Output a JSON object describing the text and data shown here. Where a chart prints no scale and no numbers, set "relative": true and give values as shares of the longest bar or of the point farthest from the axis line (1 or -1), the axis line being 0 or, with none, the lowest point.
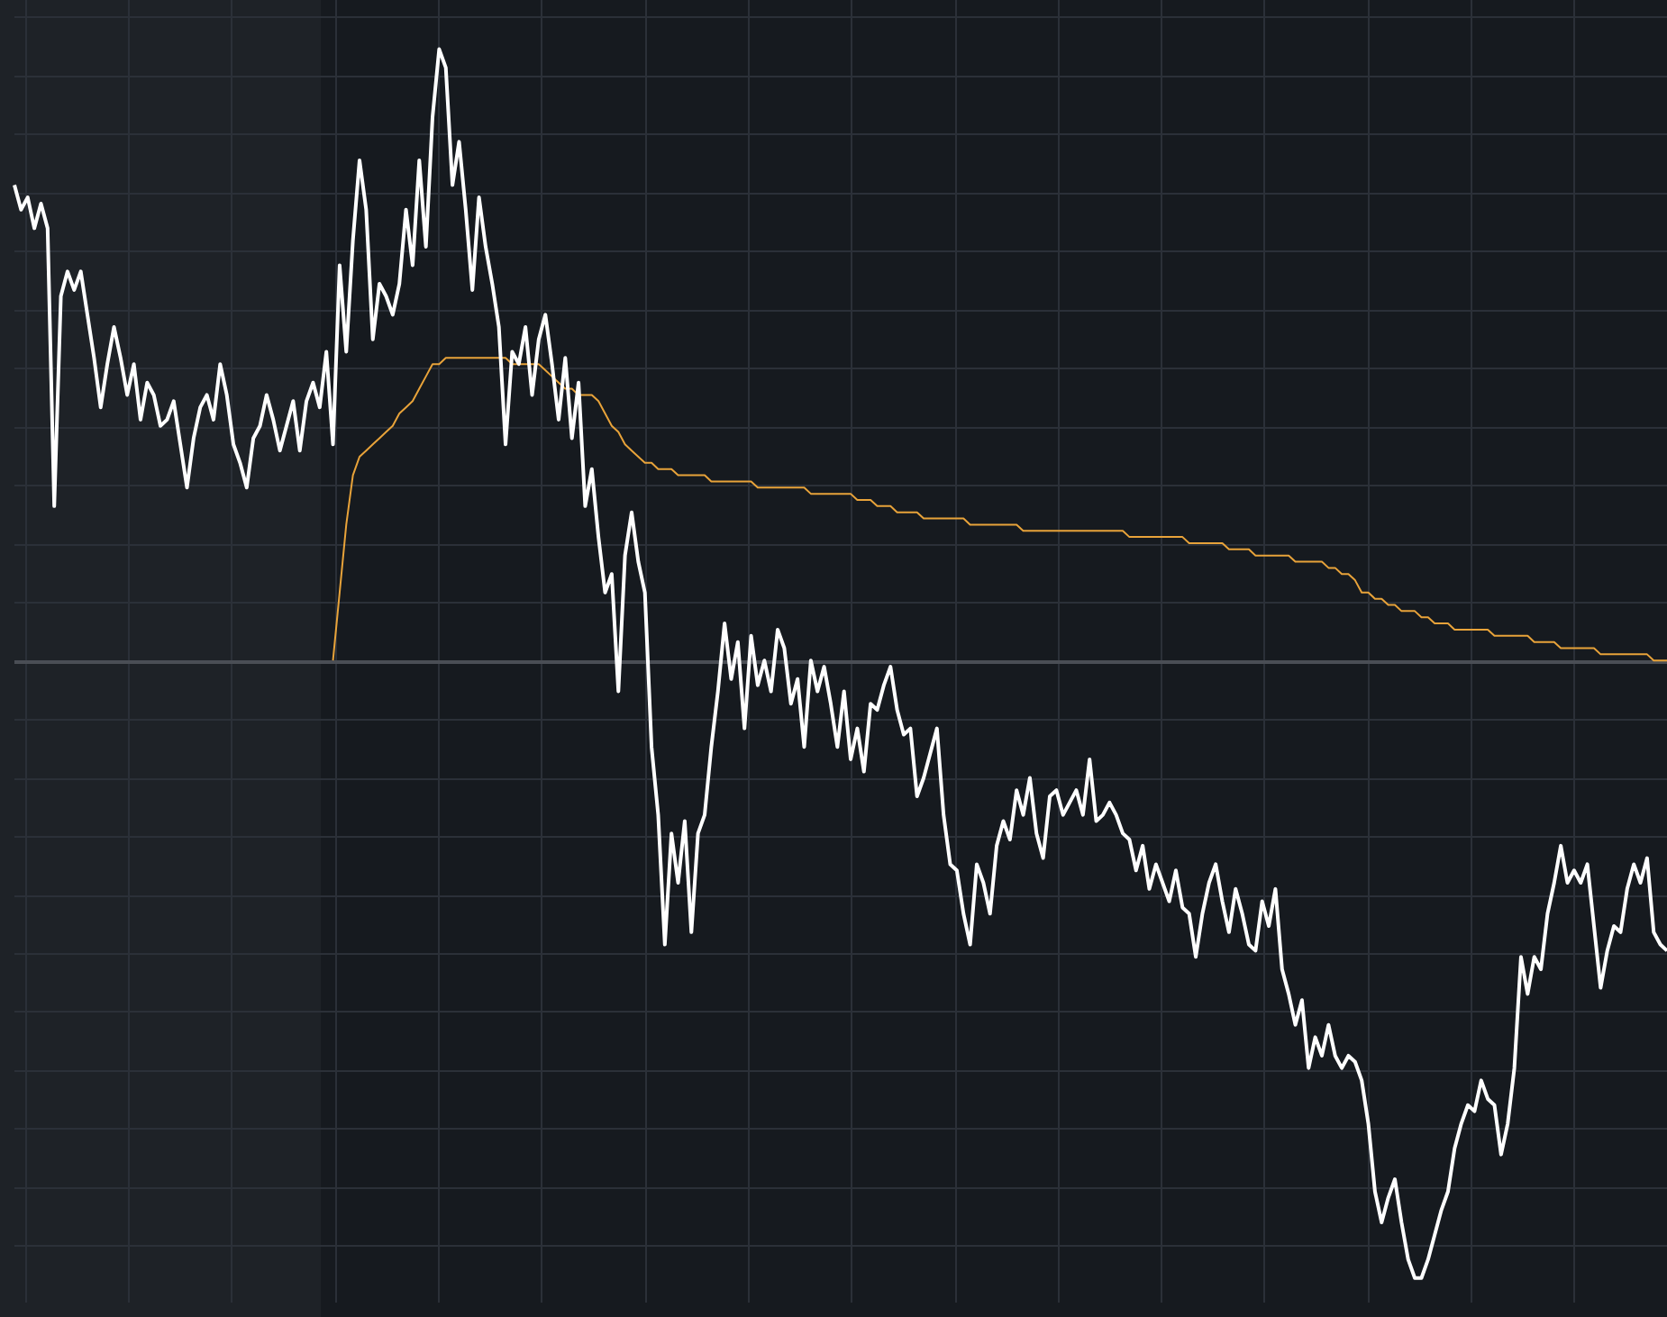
{
  "chart_data": {
    "type": "line",
    "relative": true,
    "tick_labels": false,
    "grid": true,
    "categories": [
      null,
      null,
      null,
      null,
      null,
      null,
      null,
      null,
      null,
      null,
      null,
      null,
      null,
      null,
      null,
      null,
      null,
      null,
      null,
      null,
      null,
      null,
      null,
      null,
      null,
      null,
      null,
      null,
      null,
      null,
      null,
      null,
      null,
      null,
      null,
      null,
      null,
      null,
      null,
      null,
      null,
      null,
      null,
      null,
      null,
      null,
      null,
      null,
      null,
      null,
      null,
      null,
      null,
      null,
      null,
      null,
      null,
      null,
      null,
      null,
      null,
      null,
      null,
      null,
      null,
      null,
      null,
      null,
      null,
      null,
      null,
      null,
      null,
      null,
      null,
      null,
      null,
      null,
      null,
      null,
      null,
      null,
      null,
      null,
      null,
      null,
      null,
      null,
      null,
      null,
      null,
      null,
      null,
      null,
      null,
      null,
      null,
      null,
      null,
      null,
      null,
      null,
      null,
      null,
      null,
      null,
      null,
      null,
      null,
      null,
      null,
      null,
      null,
      null,
      null,
      null,
      null,
      null,
      null,
      null,
      null,
      null,
      null,
      null,
      null,
      null,
      null,
      null,
      null,
      null,
      null,
      null,
      null,
      null,
      null,
      null,
      null,
      null,
      null,
      null,
      null,
      null,
      null,
      null,
      null,
      null,
      null,
      null,
      null,
      null,
      null,
      null,
      null,
      null,
      null,
      null,
      null,
      null,
      null,
      null,
      null,
      null,
      null,
      null,
      null,
      null,
      null,
      null,
      null,
      null,
      null,
      null,
      null,
      null,
      null,
      null,
      null,
      null,
      null,
      null,
      null,
      null,
      null,
      null,
      null,
      null,
      null,
      null,
      null,
      null,
      null,
      null,
      null,
      null,
      null,
      null,
      null,
      null,
      null,
      null,
      null,
      null,
      null,
      null,
      null,
      null,
      null,
      null,
      null,
      null,
      null,
      null,
      null,
      null,
      null,
      null,
      null,
      null,
      null,
      null,
      null,
      null,
      null,
      null,
      null,
      null,
      null,
      null,
      null,
      null,
      null,
      null,
      null,
      null,
      null,
      null,
      null,
      null,
      null,
      null,
      null,
      null,
      null,
      null,
      null,
      null,
      null,
      null,
      null,
      null
    ],
    "series": [
      {
        "color": "#ffffff",
        "values": [
          0.77,
          0.73,
          0.75,
          0.7,
          0.74,
          0.7,
          0.25,
          0.59,
          0.63,
          0.6,
          0.63,
          0.56,
          0.49,
          0.41,
          0.48,
          0.54,
          0.49,
          0.43,
          0.48,
          0.39,
          0.45,
          0.43,
          0.38,
          0.39,
          0.42,
          0.35,
          0.28,
          0.36,
          0.41,
          0.43,
          0.39,
          0.48,
          0.43,
          0.35,
          0.32,
          0.28,
          0.36,
          0.38,
          0.43,
          0.39,
          0.34,
          0.38,
          0.42,
          0.34,
          0.42,
          0.45,
          0.41,
          0.5,
          0.35,
          0.64,
          0.5,
          0.68,
          0.81,
          0.73,
          0.52,
          0.61,
          0.59,
          0.56,
          0.61,
          0.73,
          0.64,
          0.81,
          0.67,
          0.88,
          0.99,
          0.96,
          0.77,
          0.84,
          0.73,
          0.6,
          0.75,
          0.67,
          0.61,
          0.54,
          0.35,
          0.5,
          0.48,
          0.54,
          0.43,
          0.52,
          0.56,
          0.48,
          0.39,
          0.49,
          0.36,
          0.45,
          0.25,
          0.31,
          0.2,
          0.11,
          0.14,
          -0.05,
          0.17,
          0.24,
          0.16,
          0.11,
          -0.14,
          -0.25,
          -0.46,
          -0.28,
          -0.36,
          -0.26,
          -0.44,
          -0.28,
          -0.25,
          -0.14,
          -0.05,
          0.06,
          -0.03,
          0.03,
          -0.11,
          0.04,
          -0.04,
          0.0,
          -0.05,
          0.05,
          0.02,
          -0.07,
          -0.03,
          -0.14,
          0.0,
          -0.05,
          -0.01,
          -0.07,
          -0.14,
          -0.05,
          -0.16,
          -0.11,
          -0.18,
          -0.07,
          -0.08,
          -0.04,
          -0.01,
          -0.08,
          -0.12,
          -0.11,
          -0.22,
          -0.19,
          -0.15,
          -0.11,
          -0.25,
          -0.33,
          -0.34,
          -0.41,
          -0.46,
          -0.33,
          -0.36,
          -0.41,
          -0.3,
          -0.26,
          -0.29,
          -0.21,
          -0.25,
          -0.19,
          -0.28,
          -0.32,
          -0.22,
          -0.21,
          -0.25,
          -0.23,
          -0.21,
          -0.25,
          -0.16,
          -0.26,
          -0.25,
          -0.23,
          -0.25,
          -0.28,
          -0.29,
          -0.34,
          -0.3,
          -0.37,
          -0.33,
          -0.36,
          -0.39,
          -0.34,
          -0.4,
          -0.41,
          -0.48,
          -0.41,
          -0.36,
          -0.33,
          -0.39,
          -0.44,
          -0.37,
          -0.41,
          -0.46,
          -0.47,
          -0.39,
          -0.43,
          -0.37,
          -0.5,
          -0.54,
          -0.59,
          -0.55,
          -0.66,
          -0.61,
          -0.64,
          -0.59,
          -0.64,
          -0.66,
          -0.64,
          -0.65,
          -0.68,
          -0.75,
          -0.86,
          -0.91,
          -0.87,
          -0.84,
          -0.91,
          -0.97,
          -1,
          -1,
          -0.97,
          -0.93,
          -0.89,
          -0.86,
          -0.79,
          -0.75,
          -0.72,
          -0.73,
          -0.68,
          -0.71,
          -0.72,
          -0.8,
          -0.75,
          -0.66,
          -0.48,
          -0.54,
          -0.48,
          -0.5,
          -0.41,
          -0.36,
          -0.3,
          -0.36,
          -0.34,
          -0.36,
          -0.33,
          -0.43,
          -0.53,
          -0.47,
          -0.43,
          -0.44,
          -0.37,
          -0.33,
          -0.36,
          -0.32,
          -0.44,
          -0.46,
          -0.47
        ]
      },
      {
        "color": "#e8a33a",
        "values": [
          null,
          null,
          null,
          null,
          null,
          null,
          null,
          null,
          null,
          null,
          null,
          null,
          null,
          null,
          null,
          null,
          null,
          null,
          null,
          null,
          null,
          null,
          null,
          null,
          null,
          null,
          null,
          null,
          null,
          null,
          null,
          null,
          null,
          null,
          null,
          null,
          null,
          null,
          null,
          null,
          null,
          null,
          null,
          null,
          null,
          null,
          null,
          null,
          0,
          0.11,
          0.22,
          0.3,
          0.33,
          0.34,
          0.35,
          0.36,
          0.37,
          0.38,
          0.4,
          0.41,
          0.42,
          0.44,
          0.46,
          0.48,
          0.48,
          0.49,
          0.49,
          0.49,
          0.49,
          0.49,
          0.49,
          0.49,
          0.49,
          0.49,
          0.49,
          0.48,
          0.48,
          0.48,
          0.48,
          0.48,
          0.47,
          0.46,
          0.45,
          0.44,
          0.44,
          0.43,
          0.43,
          0.43,
          0.42,
          0.4,
          0.38,
          0.37,
          0.35,
          0.34,
          0.33,
          0.32,
          0.32,
          0.31,
          0.31,
          0.31,
          0.3,
          0.3,
          0.3,
          0.3,
          0.3,
          0.29,
          0.29,
          0.29,
          0.29,
          0.29,
          0.29,
          0.29,
          0.28,
          0.28,
          0.28,
          0.28,
          0.28,
          0.28,
          0.28,
          0.28,
          0.27,
          0.27,
          0.27,
          0.27,
          0.27,
          0.27,
          0.27,
          0.26,
          0.26,
          0.26,
          0.25,
          0.25,
          0.25,
          0.24,
          0.24,
          0.24,
          0.24,
          0.23,
          0.23,
          0.23,
          0.23,
          0.23,
          0.23,
          0.23,
          0.22,
          0.22,
          0.22,
          0.22,
          0.22,
          0.22,
          0.22,
          0.22,
          0.21,
          0.21,
          0.21,
          0.21,
          0.21,
          0.21,
          0.21,
          0.21,
          0.21,
          0.21,
          0.21,
          0.21,
          0.21,
          0.21,
          0.21,
          0.21,
          0.2,
          0.2,
          0.2,
          0.2,
          0.2,
          0.2,
          0.2,
          0.2,
          0.2,
          0.19,
          0.19,
          0.19,
          0.19,
          0.19,
          0.19,
          0.18,
          0.18,
          0.18,
          0.18,
          0.17,
          0.17,
          0.17,
          0.17,
          0.17,
          0.17,
          0.16,
          0.16,
          0.16,
          0.16,
          0.16,
          0.15,
          0.15,
          0.14,
          0.14,
          0.13,
          0.11,
          0.11,
          0.1,
          0.1,
          0.09,
          0.09,
          0.08,
          0.08,
          0.08,
          0.07,
          0.07,
          0.06,
          0.06,
          0.06,
          0.05,
          0.05,
          0.05,
          0.05,
          0.05,
          0.05,
          0.04,
          0.04,
          0.04,
          0.04,
          0.04,
          0.04,
          0.03,
          0.03,
          0.03,
          0.03,
          0.02,
          0.02,
          0.02,
          0.02,
          0.02,
          0.02,
          0.01,
          0.01,
          0.01,
          0.01,
          0.01,
          0.01,
          0.01,
          0.01,
          0,
          0,
          0
        ]
      }
    ]
  }
}
